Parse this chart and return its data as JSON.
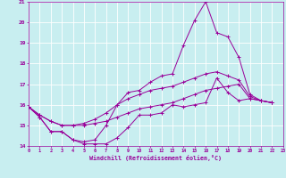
{
  "xlabel": "Windchill (Refroidissement éolien,°C)",
  "bg_color": "#c8eef0",
  "line_color": "#990099",
  "grid_color": "#ffffff",
  "xmin": 0,
  "xmax": 23,
  "ymin": 14,
  "ymax": 21,
  "series": [
    [
      15.9,
      15.4,
      14.7,
      14.7,
      14.3,
      14.1,
      14.1,
      14.1,
      14.4,
      14.9,
      15.5,
      15.5,
      15.6,
      16.0,
      15.9,
      16.0,
      16.1,
      17.3,
      16.6,
      16.2,
      16.3,
      16.2,
      16.1
    ],
    [
      15.9,
      15.4,
      14.7,
      14.7,
      14.3,
      14.2,
      14.3,
      15.0,
      16.0,
      16.6,
      16.7,
      17.1,
      17.4,
      17.5,
      18.9,
      20.1,
      21.0,
      19.5,
      19.3,
      18.3,
      16.5,
      16.2,
      16.1
    ],
    [
      15.9,
      15.5,
      15.2,
      15.0,
      15.0,
      15.0,
      15.1,
      15.2,
      15.4,
      15.6,
      15.8,
      15.9,
      16.0,
      16.1,
      16.3,
      16.5,
      16.7,
      16.8,
      16.9,
      17.0,
      16.3,
      16.2,
      16.1
    ],
    [
      15.9,
      15.5,
      15.2,
      15.0,
      15.0,
      15.1,
      15.3,
      15.6,
      16.0,
      16.3,
      16.5,
      16.7,
      16.8,
      16.9,
      17.1,
      17.3,
      17.5,
      17.6,
      17.4,
      17.2,
      16.4,
      16.2,
      16.1
    ]
  ],
  "x_points": [
    0,
    1,
    2,
    3,
    4,
    5,
    6,
    7,
    8,
    9,
    10,
    11,
    12,
    13,
    14,
    15,
    16,
    17,
    18,
    19,
    20,
    21,
    22
  ]
}
